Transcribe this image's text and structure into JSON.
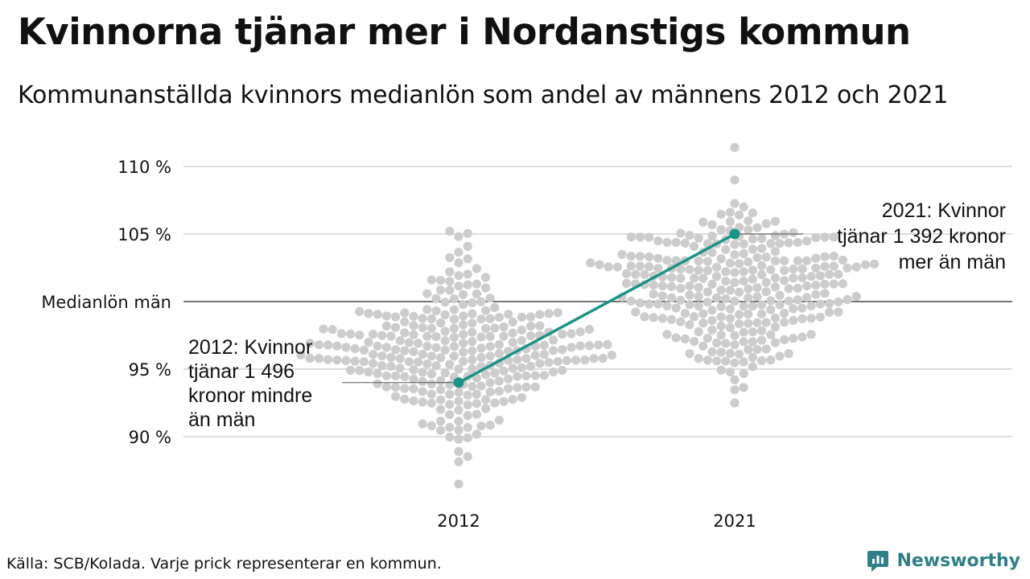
{
  "header": {
    "title": "Kvinnorna tjänar mer i Nordanstigs kommun",
    "subtitle": "Kommunanställda kvinnors medianlön som andel av männens 2012 och 2021"
  },
  "footer": {
    "source": "Källa: SCB/Kolada. Varje prick representerar en kommun.",
    "brand": "Newsworthy"
  },
  "colors": {
    "highlight": "#1a9486",
    "dots": "#cccccc",
    "grid": "#dddddd",
    "reference_line": "#222222",
    "brand": "#2e7f86"
  },
  "chart_data": {
    "type": "scatter",
    "categories": [
      "2012",
      "2021"
    ],
    "ylim": [
      85,
      112
    ],
    "y_ticks": [
      {
        "value": 90,
        "label": "90 %"
      },
      {
        "value": 95,
        "label": "95 %"
      },
      {
        "value": 100,
        "label": "Medianlön män"
      },
      {
        "value": 105,
        "label": "105 %"
      },
      {
        "value": 110,
        "label": "110 %"
      }
    ],
    "reference_line": 100,
    "grid": true,
    "distributions": [
      {
        "category": "2012",
        "min": 86.5,
        "max": 105.2,
        "median": 96.5,
        "dot_count": 290
      },
      {
        "category": "2021",
        "min": 92.5,
        "max": 111.4,
        "median": 100.7,
        "dot_count": 290
      }
    ],
    "highlight": {
      "values": [
        {
          "category": "2012",
          "value": 94
        },
        {
          "category": "2021",
          "value": 105
        }
      ]
    },
    "annotations": [
      {
        "category": "2012",
        "value": 94,
        "lines": [
          "2012: Kvinnor",
          "tjänar 1 496",
          "kronor mindre",
          "än män"
        ]
      },
      {
        "category": "2021",
        "value": 105,
        "lines": [
          "2021: Kvinnor",
          "tjänar 1 392 kronor",
          "mer än män"
        ]
      }
    ]
  }
}
